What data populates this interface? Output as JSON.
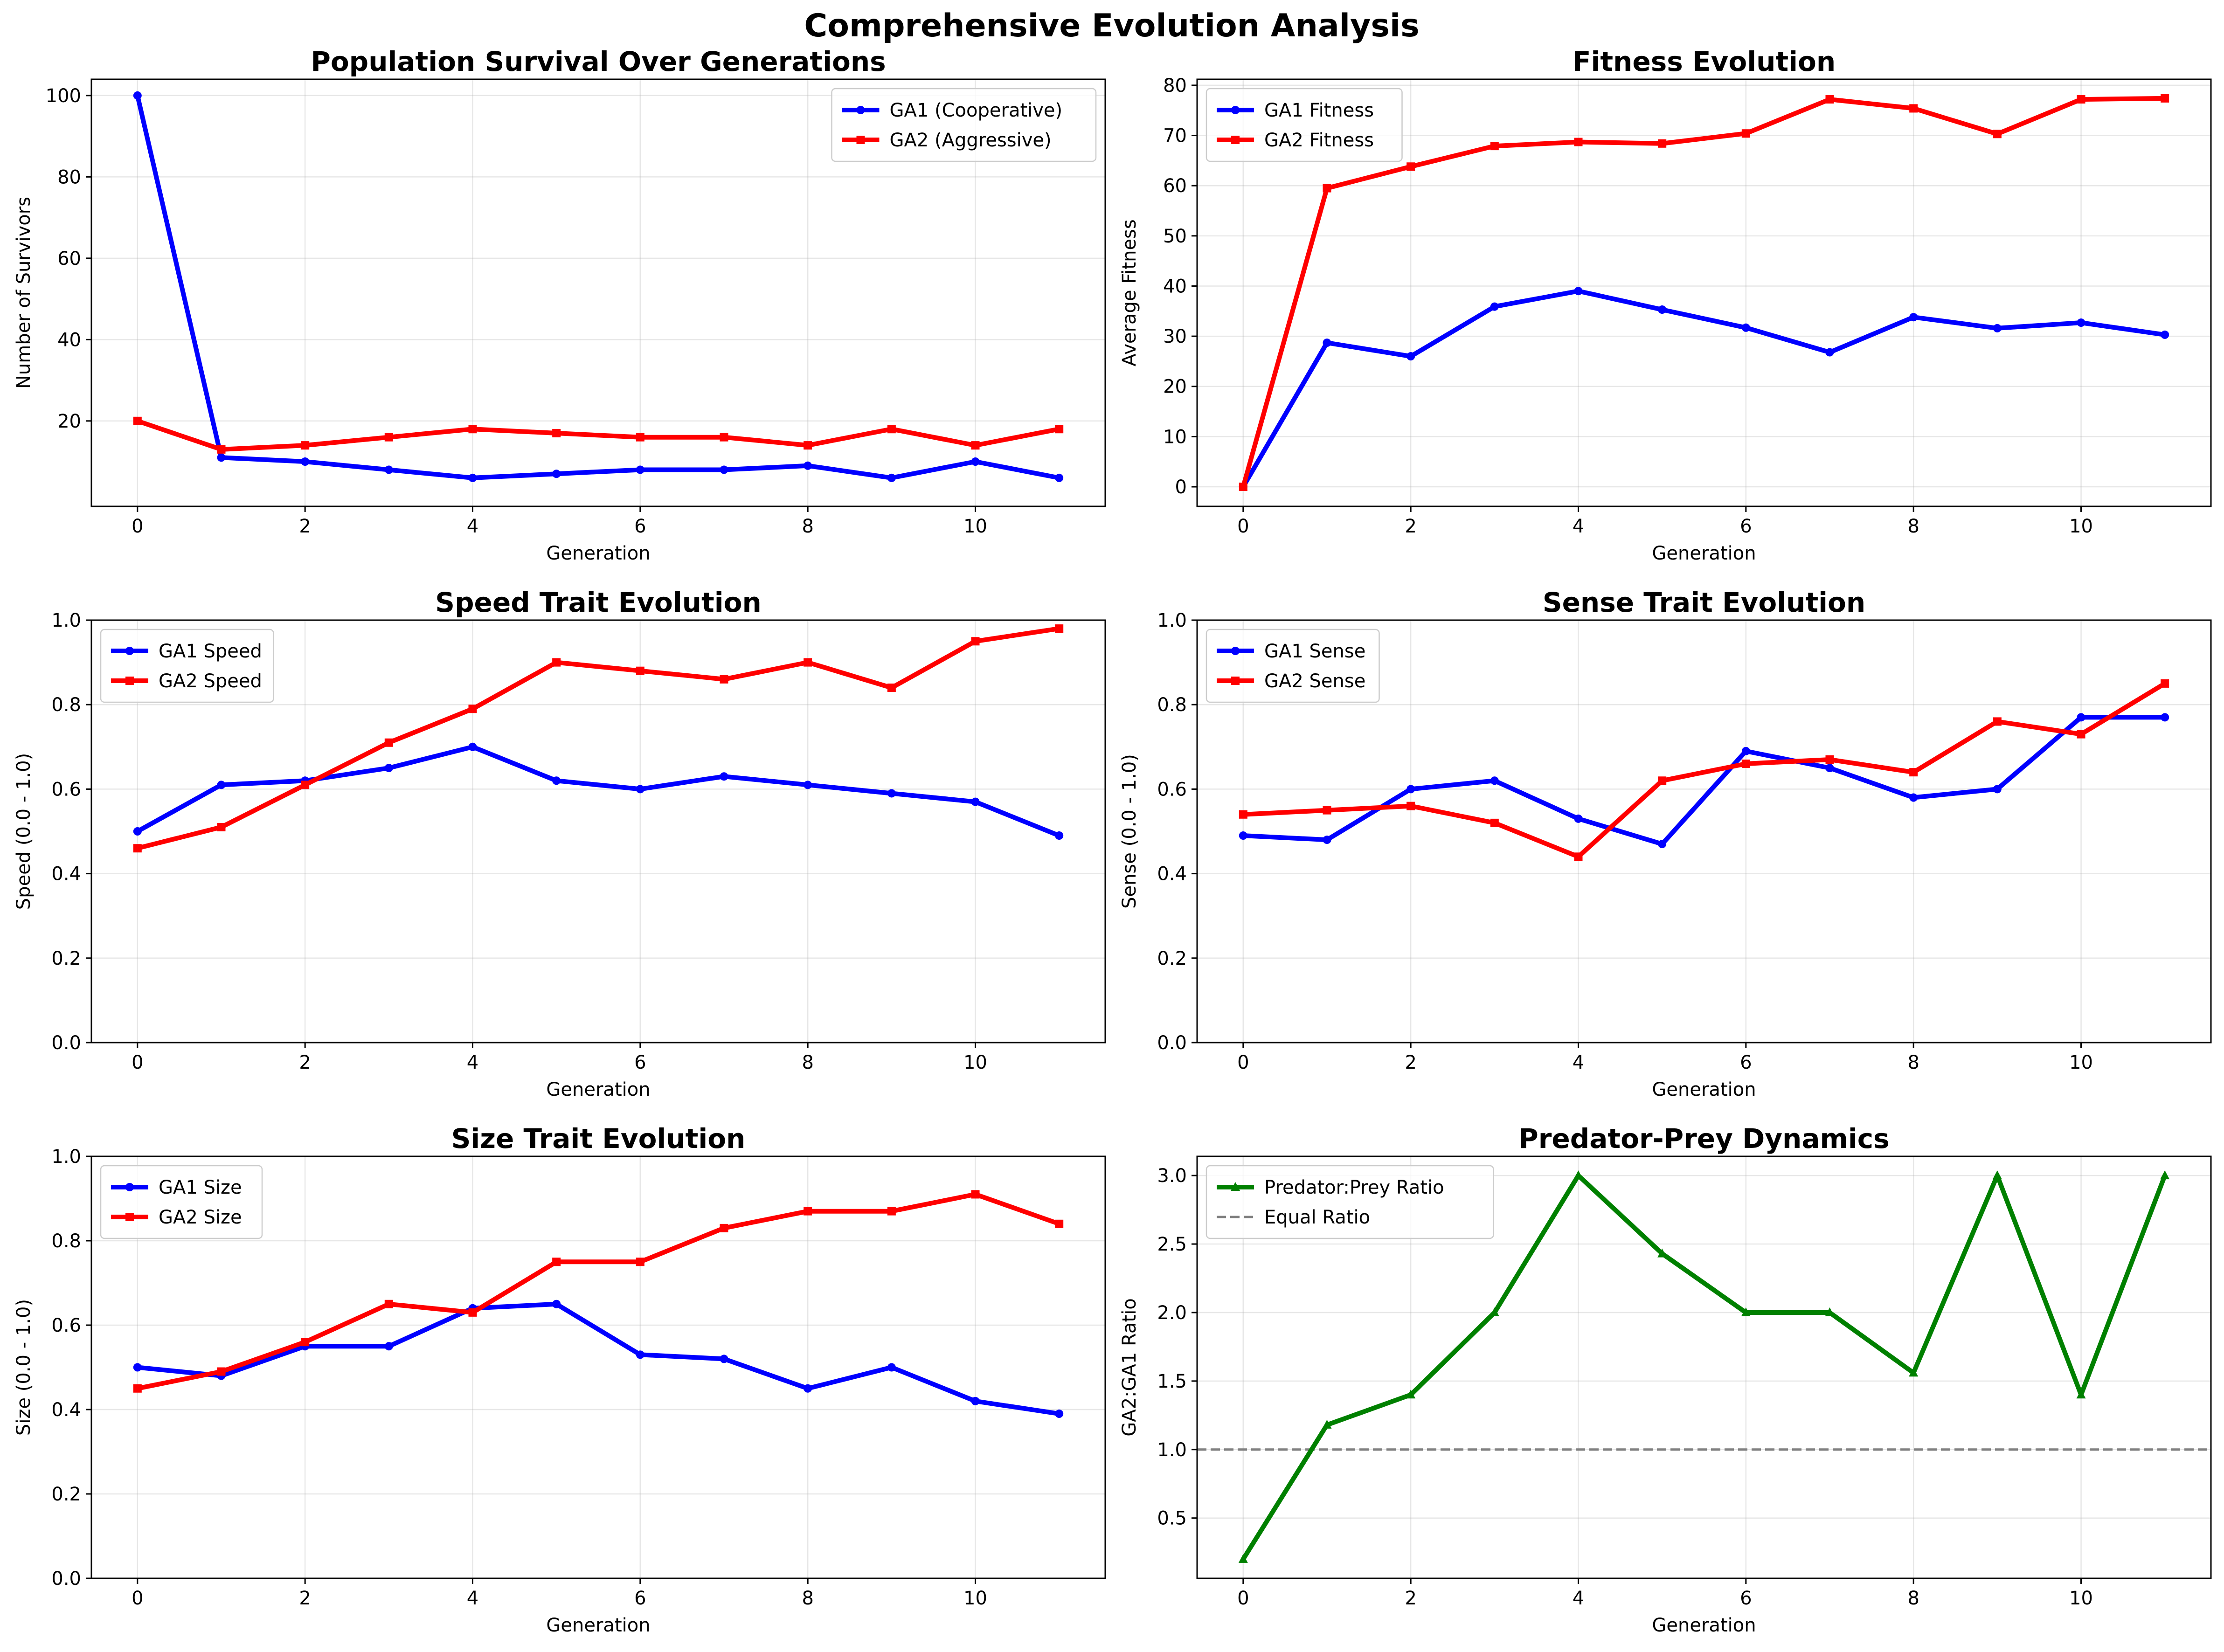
{
  "figure": {
    "title": "Comprehensive Evolution Analysis"
  },
  "chart_data": [
    {
      "type": "line",
      "title": "Population Survival Over Generations",
      "xlabel": "Generation",
      "ylabel": "Number of Survivors",
      "x": [
        0,
        1,
        2,
        3,
        4,
        5,
        6,
        7,
        8,
        9,
        10,
        11
      ],
      "xlim": [
        -0.55,
        11.55
      ],
      "ylim": [
        -1,
        104
      ],
      "xticks": [
        0,
        2,
        4,
        6,
        8,
        10
      ],
      "yticks": [
        20,
        40,
        60,
        80,
        100
      ],
      "ytick_format": "int",
      "grid": true,
      "legend": "top-right",
      "series": [
        {
          "name": "GA1 (Cooperative)",
          "color": "#0000ff",
          "marker": "circle",
          "values": [
            100,
            11,
            10,
            8,
            6,
            7,
            8,
            8,
            9,
            6,
            10,
            6
          ]
        },
        {
          "name": "GA2 (Aggressive)",
          "color": "#ff0000",
          "marker": "square",
          "values": [
            20,
            13,
            14,
            16,
            18,
            17,
            16,
            16,
            14,
            18,
            14,
            18
          ]
        }
      ]
    },
    {
      "type": "line",
      "title": "Fitness Evolution",
      "xlabel": "Generation",
      "ylabel": "Average Fitness",
      "x": [
        0,
        1,
        2,
        3,
        4,
        5,
        6,
        7,
        8,
        9,
        10,
        11
      ],
      "xlim": [
        -0.55,
        11.55
      ],
      "ylim": [
        -3.9,
        81.2
      ],
      "xticks": [
        0,
        2,
        4,
        6,
        8,
        10
      ],
      "yticks": [
        0,
        10,
        20,
        30,
        40,
        50,
        60,
        70,
        80
      ],
      "ytick_format": "int",
      "grid": true,
      "legend": "top-left",
      "series": [
        {
          "name": "GA1 Fitness",
          "color": "#0000ff",
          "marker": "circle",
          "values": [
            0,
            28.7,
            26,
            35.9,
            39,
            35.3,
            31.7,
            26.8,
            33.8,
            31.6,
            32.7,
            30.3
          ]
        },
        {
          "name": "GA2 Fitness",
          "color": "#ff0000",
          "marker": "square",
          "values": [
            0,
            59.5,
            63.8,
            67.9,
            68.7,
            68.4,
            70.4,
            77.2,
            75.4,
            70.3,
            77.2,
            77.4
          ]
        }
      ]
    },
    {
      "type": "line",
      "title": "Speed Trait Evolution",
      "xlabel": "Generation",
      "ylabel": "Speed (0.0 - 1.0)",
      "x": [
        0,
        1,
        2,
        3,
        4,
        5,
        6,
        7,
        8,
        9,
        10,
        11
      ],
      "xlim": [
        -0.55,
        11.55
      ],
      "ylim": [
        0,
        1
      ],
      "xticks": [
        0,
        2,
        4,
        6,
        8,
        10
      ],
      "yticks": [
        0,
        0.2,
        0.4,
        0.6,
        0.8,
        1.0
      ],
      "ytick_format": "1dp",
      "grid": true,
      "legend": "top-left",
      "series": [
        {
          "name": "GA1 Speed",
          "color": "#0000ff",
          "marker": "circle",
          "values": [
            0.5,
            0.61,
            0.62,
            0.65,
            0.7,
            0.62,
            0.6,
            0.63,
            0.61,
            0.59,
            0.57,
            0.49
          ]
        },
        {
          "name": "GA2 Speed",
          "color": "#ff0000",
          "marker": "square",
          "values": [
            0.46,
            0.51,
            0.61,
            0.71,
            0.79,
            0.9,
            0.88,
            0.86,
            0.9,
            0.84,
            0.95,
            0.98
          ]
        }
      ]
    },
    {
      "type": "line",
      "title": "Sense Trait Evolution",
      "xlabel": "Generation",
      "ylabel": "Sense (0.0 - 1.0)",
      "x": [
        0,
        1,
        2,
        3,
        4,
        5,
        6,
        7,
        8,
        9,
        10,
        11
      ],
      "xlim": [
        -0.55,
        11.55
      ],
      "ylim": [
        0,
        1
      ],
      "xticks": [
        0,
        2,
        4,
        6,
        8,
        10
      ],
      "yticks": [
        0,
        0.2,
        0.4,
        0.6,
        0.8,
        1.0
      ],
      "ytick_format": "1dp",
      "grid": true,
      "legend": "top-left",
      "series": [
        {
          "name": "GA1 Sense",
          "color": "#0000ff",
          "marker": "circle",
          "values": [
            0.49,
            0.48,
            0.6,
            0.62,
            0.53,
            0.47,
            0.69,
            0.65,
            0.58,
            0.6,
            0.77,
            0.77
          ]
        },
        {
          "name": "GA2 Sense",
          "color": "#ff0000",
          "marker": "square",
          "values": [
            0.54,
            0.55,
            0.56,
            0.52,
            0.44,
            0.62,
            0.66,
            0.67,
            0.64,
            0.76,
            0.73,
            0.85
          ]
        }
      ]
    },
    {
      "type": "line",
      "title": "Size Trait Evolution",
      "xlabel": "Generation",
      "ylabel": "Size (0.0 - 1.0)",
      "x": [
        0,
        1,
        2,
        3,
        4,
        5,
        6,
        7,
        8,
        9,
        10,
        11
      ],
      "xlim": [
        -0.55,
        11.55
      ],
      "ylim": [
        0,
        1
      ],
      "xticks": [
        0,
        2,
        4,
        6,
        8,
        10
      ],
      "yticks": [
        0,
        0.2,
        0.4,
        0.6,
        0.8,
        1.0
      ],
      "ytick_format": "1dp",
      "grid": true,
      "legend": "top-left",
      "series": [
        {
          "name": "GA1 Size",
          "color": "#0000ff",
          "marker": "circle",
          "values": [
            0.5,
            0.48,
            0.55,
            0.55,
            0.64,
            0.65,
            0.53,
            0.52,
            0.45,
            0.5,
            0.42,
            0.39
          ]
        },
        {
          "name": "GA2 Size",
          "color": "#ff0000",
          "marker": "square",
          "values": [
            0.45,
            0.49,
            0.56,
            0.65,
            0.63,
            0.75,
            0.75,
            0.83,
            0.87,
            0.87,
            0.91,
            0.84
          ]
        }
      ]
    },
    {
      "type": "line",
      "title": "Predator-Prey Dynamics",
      "xlabel": "Generation",
      "ylabel": "GA2:GA1 Ratio",
      "x": [
        0,
        1,
        2,
        3,
        4,
        5,
        6,
        7,
        8,
        9,
        10,
        11
      ],
      "xlim": [
        -0.55,
        11.55
      ],
      "ylim": [
        0.06,
        3.14
      ],
      "xticks": [
        0,
        2,
        4,
        6,
        8,
        10
      ],
      "yticks": [
        0.5,
        1.0,
        1.5,
        2.0,
        2.5,
        3.0
      ],
      "ytick_format": "1dp",
      "grid": true,
      "legend": "top-left",
      "series": [
        {
          "name": "Predator:Prey Ratio",
          "color": "#008000",
          "marker": "triangle",
          "values": [
            0.2,
            1.18,
            1.4,
            2.0,
            3.0,
            2.43,
            2.0,
            2.0,
            1.56,
            3.0,
            1.4,
            3.0
          ]
        }
      ],
      "hlines": [
        {
          "name": "Equal Ratio",
          "y": 1.0,
          "color": "#808080",
          "style": "dashed"
        }
      ]
    }
  ]
}
